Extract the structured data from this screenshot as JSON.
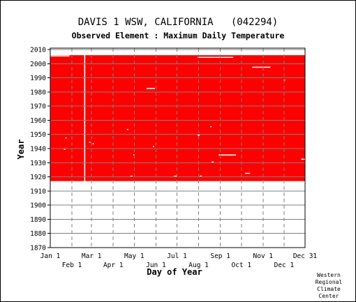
{
  "chart_data": {
    "type": "heatmap",
    "title": "DAVIS 1 WSW, CALIFORNIA   (042294)",
    "subtitle": "Observed Element : Maximum Daily Temperature",
    "xlabel": "Day of Year",
    "ylabel": "Year",
    "xlim": [
      1,
      365
    ],
    "ylim": [
      1870,
      2011
    ],
    "x_ticks_top_row": [
      {
        "label": "Jan 1",
        "day": 1
      },
      {
        "label": "Mar 1",
        "day": 60
      },
      {
        "label": "May 1",
        "day": 121
      },
      {
        "label": "Jul 1",
        "day": 182
      },
      {
        "label": "Sep 1",
        "day": 244
      },
      {
        "label": "Nov 1",
        "day": 305
      },
      {
        "label": "Dec 31",
        "day": 365
      }
    ],
    "x_ticks_bottom_row": [
      {
        "label": "Feb 1",
        "day": 32
      },
      {
        "label": "Apr 1",
        "day": 91
      },
      {
        "label": "Jun 1",
        "day": 152
      },
      {
        "label": "Aug 1",
        "day": 213
      },
      {
        "label": "Oct 1",
        "day": 274
      },
      {
        "label": "Dec 1",
        "day": 335
      }
    ],
    "y_ticks": [
      2010,
      2000,
      1990,
      1980,
      1970,
      1960,
      1950,
      1940,
      1930,
      1920,
      1910,
      1900,
      1890,
      1880,
      1870
    ],
    "data_color": "#ff0000",
    "grid": true,
    "coverage": {
      "year_start": 1917,
      "year_end": 2005,
      "day_start": 1,
      "day_end": 365
    },
    "missing": [
      {
        "day_start": 1,
        "day_end": 28,
        "year": 2005
      },
      {
        "day_start": 212,
        "day_end": 236,
        "year": 2004
      },
      {
        "day_start": 237,
        "day_end": 262,
        "year": 2004
      },
      {
        "day_start": 290,
        "day_end": 315,
        "year": 1997
      },
      {
        "day_start": 335,
        "day_end": 336,
        "year": 1988
      },
      {
        "day_start": 139,
        "day_end": 150,
        "year": 1982
      },
      {
        "day_start": 230,
        "day_end": 231,
        "year": 1955
      },
      {
        "day_start": 111,
        "day_end": 112,
        "year": 1953
      },
      {
        "day_start": 212,
        "day_end": 214,
        "year": 1949
      },
      {
        "day_start": 23,
        "day_end": 24,
        "year": 1947
      },
      {
        "day_start": 57,
        "day_end": 58,
        "year": 1944
      },
      {
        "day_start": 62,
        "day_end": 63,
        "year": 1943
      },
      {
        "day_start": 148,
        "day_end": 149,
        "year": 1941
      },
      {
        "day_start": 120,
        "day_end": 121,
        "year": 1935
      },
      {
        "day_start": 242,
        "day_end": 266,
        "year": 1935
      },
      {
        "day_start": 360,
        "day_end": 365,
        "year": 1932
      },
      {
        "day_start": 232,
        "day_end": 234,
        "year": 1930
      },
      {
        "day_start": 280,
        "day_end": 286,
        "year": 1922
      },
      {
        "day_start": 116,
        "day_end": 118,
        "year": 1920
      },
      {
        "day_start": 178,
        "day_end": 181,
        "year": 1920
      },
      {
        "day_start": 215,
        "day_end": 217,
        "year": 1920
      },
      {
        "day_start": 21,
        "day_end": 22,
        "year": 1939
      }
    ],
    "missing_columns": [
      {
        "day": 50
      }
    ]
  },
  "credit": [
    "Western",
    "Regional",
    "Climate",
    "Center"
  ]
}
